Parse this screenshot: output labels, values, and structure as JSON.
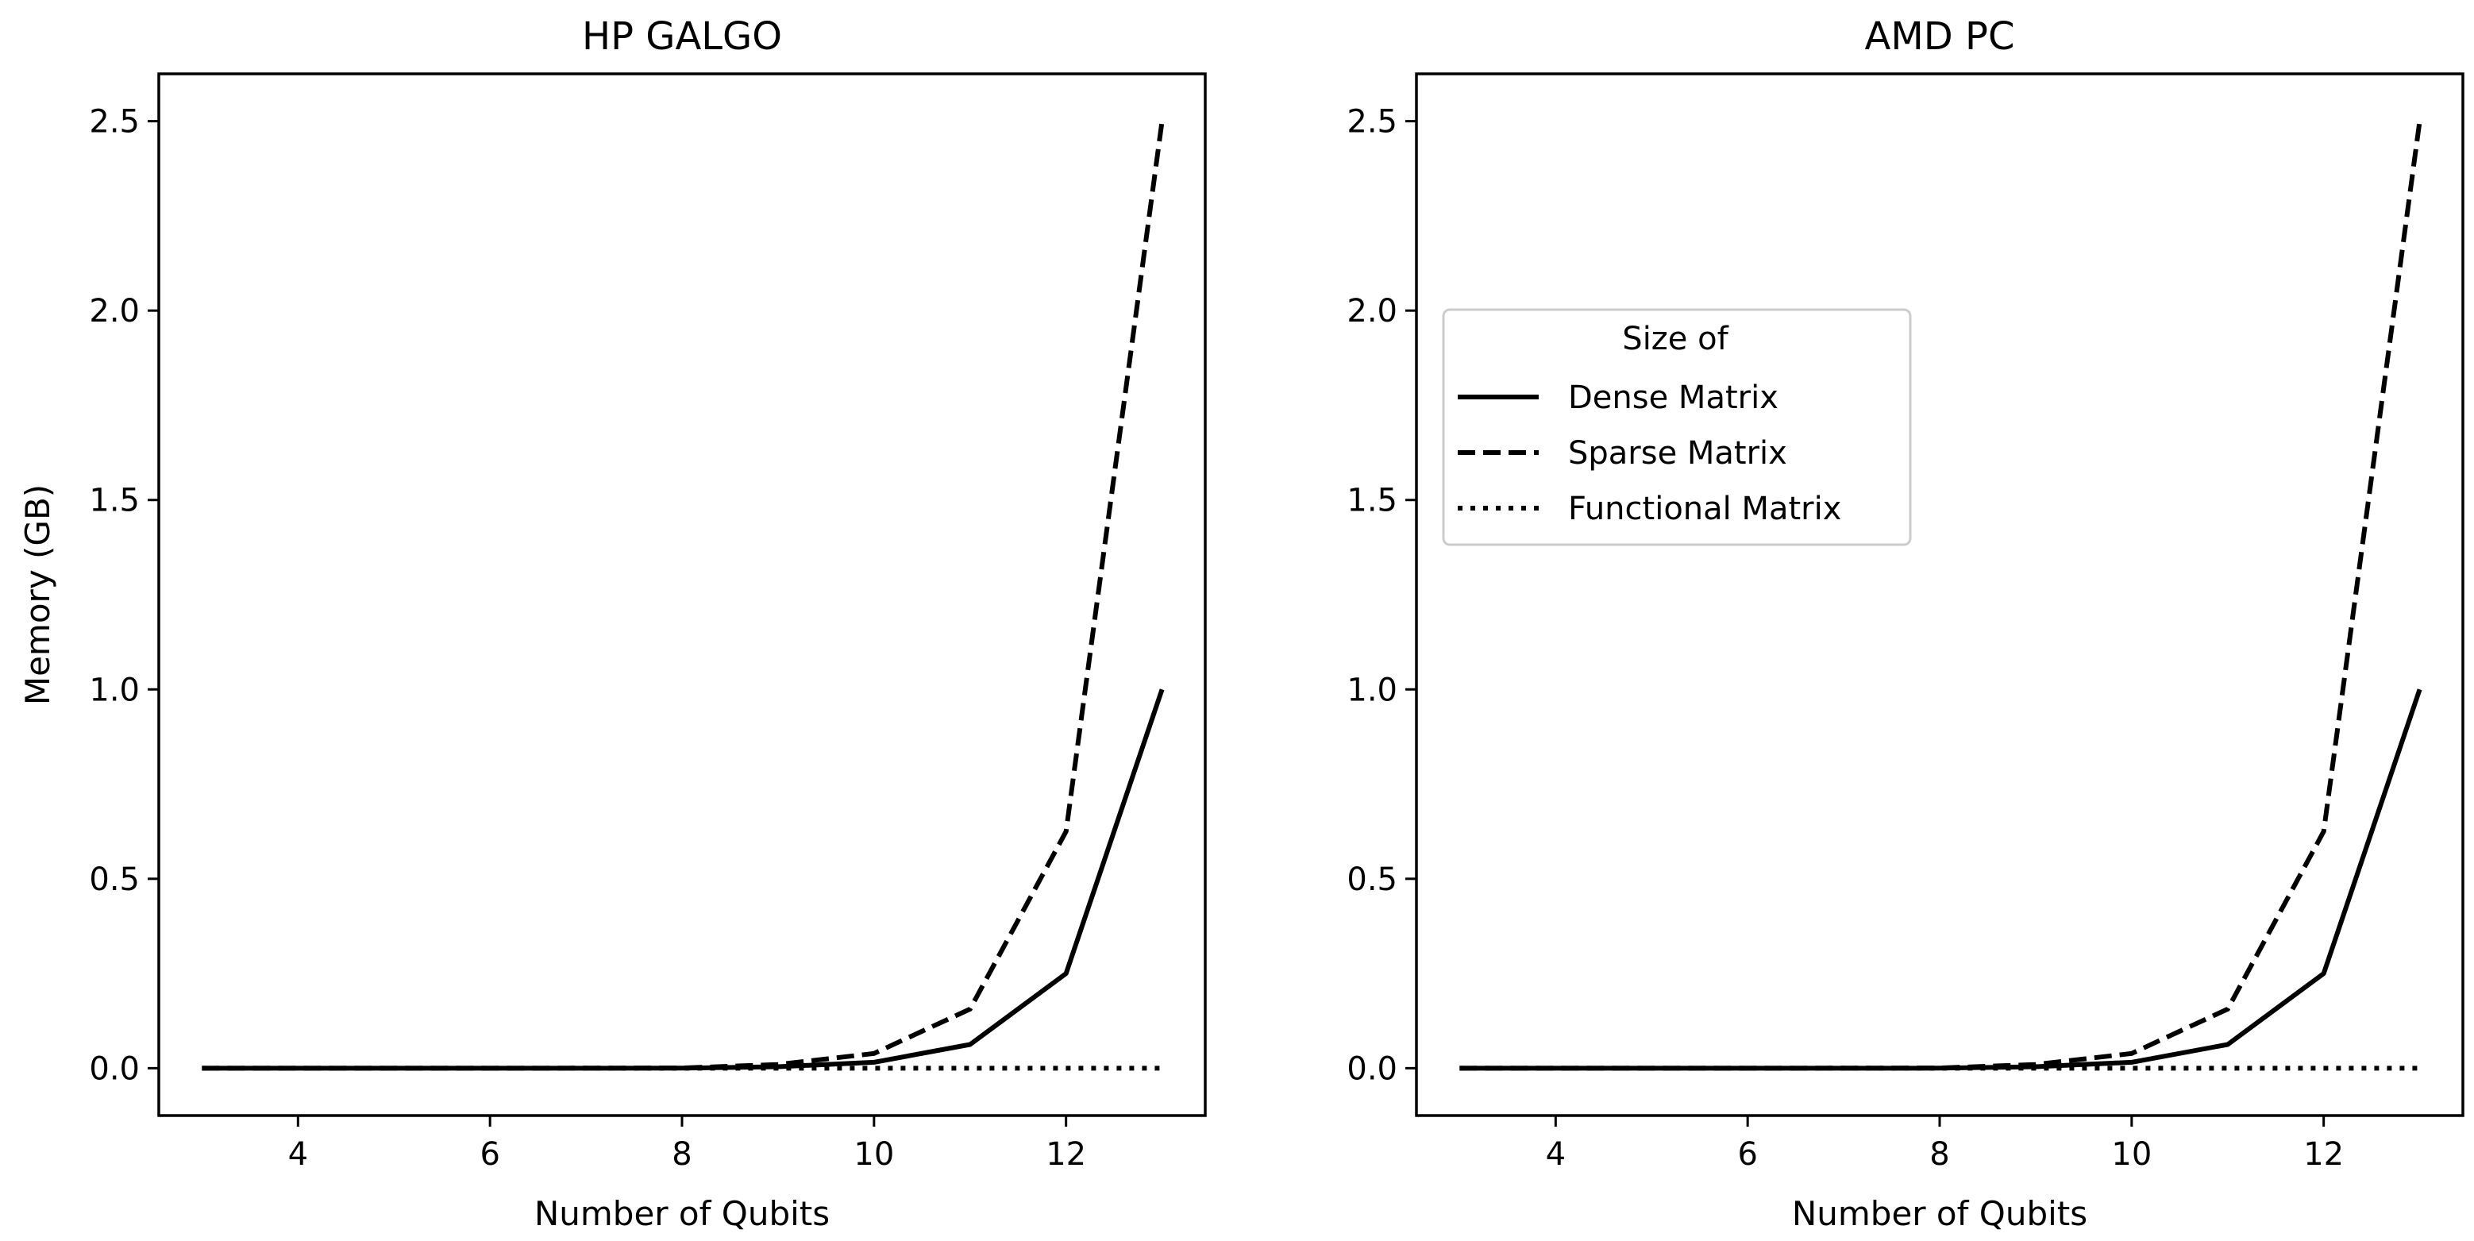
{
  "chart_data": [
    {
      "type": "line",
      "title": "HP GALGO",
      "xlabel": "Number of Qubits",
      "ylabel": "Memory (GB)",
      "x": [
        3,
        4,
        5,
        6,
        7,
        8,
        9,
        10,
        11,
        12,
        13
      ],
      "xticks": [
        "4",
        "6",
        "8",
        "10",
        "12"
      ],
      "yticks": [
        "0.0",
        "0.5",
        "1.0",
        "1.5",
        "2.0",
        "2.5"
      ],
      "xlim": [
        2.55,
        13.45
      ],
      "ylim": [
        -0.125,
        2.625
      ],
      "grid": false,
      "legend_position": "none",
      "series": [
        {
          "name": "Dense Matrix",
          "style": "solid",
          "values": [
            0.0,
            0.0,
            0.0,
            0.0,
            0.0,
            0.0002,
            0.0039,
            0.0156,
            0.0625,
            0.25,
            1.0
          ]
        },
        {
          "name": "Sparse Matrix",
          "style": "dashed",
          "values": [
            0.0,
            0.0,
            0.0,
            0.0,
            0.0001,
            0.0006,
            0.0098,
            0.039,
            0.156,
            0.625,
            2.5
          ]
        },
        {
          "name": "Functional Matrix",
          "style": "dotted",
          "values": [
            0.0,
            0.0,
            0.0,
            0.0,
            0.0,
            0.0,
            0.0,
            0.0,
            0.0,
            0.0,
            0.0
          ]
        }
      ]
    },
    {
      "type": "line",
      "title": "AMD PC",
      "xlabel": "Number of Qubits",
      "ylabel": "",
      "x": [
        3,
        4,
        5,
        6,
        7,
        8,
        9,
        10,
        11,
        12,
        13
      ],
      "xticks": [
        "4",
        "6",
        "8",
        "10",
        "12"
      ],
      "yticks": [
        "0.0",
        "0.5",
        "1.0",
        "1.5",
        "2.0",
        "2.5"
      ],
      "xlim": [
        2.55,
        13.45
      ],
      "ylim": [
        -0.125,
        2.625
      ],
      "grid": false,
      "legend_position": "center left",
      "legend_title": "Size of",
      "series": [
        {
          "name": "Dense Matrix",
          "style": "solid",
          "values": [
            0.0,
            0.0,
            0.0,
            0.0,
            0.0,
            0.0002,
            0.0039,
            0.0156,
            0.0625,
            0.25,
            1.0
          ]
        },
        {
          "name": "Sparse Matrix",
          "style": "dashed",
          "values": [
            0.0,
            0.0,
            0.0,
            0.0,
            0.0001,
            0.0006,
            0.0098,
            0.039,
            0.156,
            0.625,
            2.5
          ]
        },
        {
          "name": "Functional Matrix",
          "style": "dotted",
          "values": [
            0.0,
            0.0,
            0.0,
            0.0,
            0.0,
            0.0,
            0.0,
            0.0,
            0.0,
            0.0,
            0.0
          ]
        }
      ]
    }
  ],
  "legend": {
    "title": "Size of",
    "items": [
      "Dense Matrix",
      "Sparse Matrix",
      "Functional Matrix"
    ]
  }
}
